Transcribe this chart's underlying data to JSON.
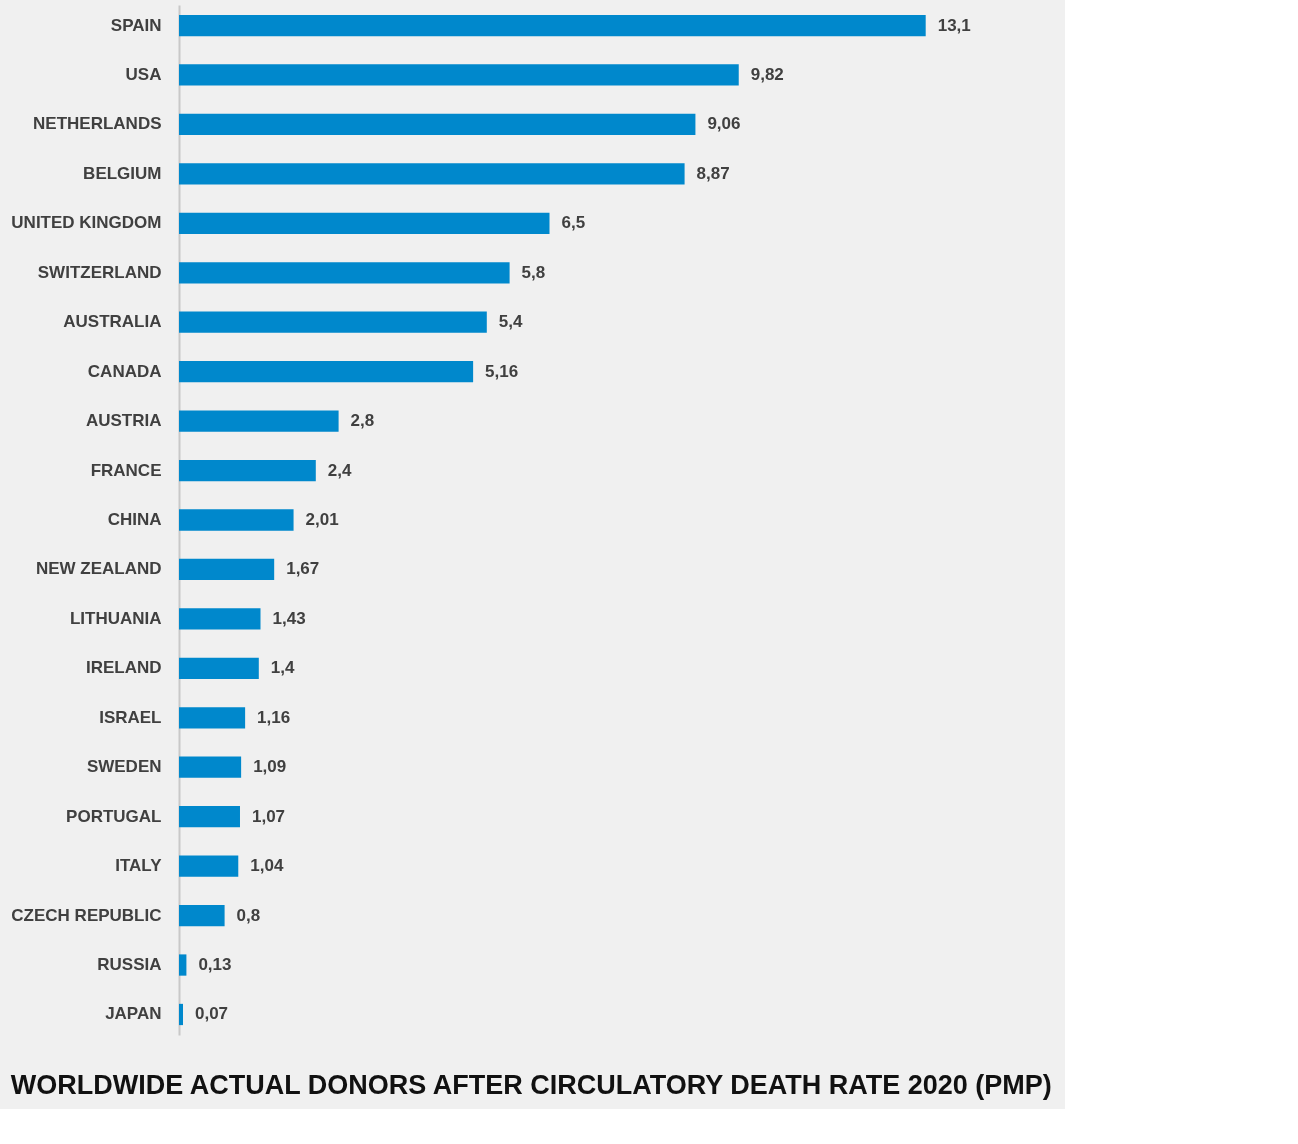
{
  "chart_data": {
    "type": "bar",
    "orientation": "horizontal",
    "title": "WORLDWIDE ACTUAL DONORS AFTER CIRCULATORY DEATH RATE 2020 (PMP)",
    "categories": [
      "SPAIN",
      "USA",
      "NETHERLANDS",
      "BELGIUM",
      "UNITED KINGDOM",
      "SWITZERLAND",
      "AUSTRALIA",
      "CANADA",
      "AUSTRIA",
      "FRANCE",
      "CHINA",
      "NEW ZEALAND",
      "LITHUANIA",
      "IRELAND",
      "ISRAEL",
      "SWEDEN",
      "PORTUGAL",
      "ITALY",
      "CZECH REPUBLIC",
      "RUSSIA",
      "JAPAN"
    ],
    "values": [
      13.1,
      9.82,
      9.06,
      8.87,
      6.5,
      5.8,
      5.4,
      5.16,
      2.8,
      2.4,
      2.01,
      1.67,
      1.43,
      1.4,
      1.16,
      1.09,
      1.07,
      1.04,
      0.8,
      0.13,
      0.07
    ],
    "value_labels": [
      "13,1",
      "9,82",
      "9,06",
      "8,87",
      "6,5",
      "5,8",
      "5,4",
      "5,16",
      "2,8",
      "2,4",
      "2,01",
      "1,67",
      "1,43",
      "1,4",
      "1,16",
      "1,09",
      "1,07",
      "1,04",
      "0,8",
      "0,13",
      "0,07"
    ],
    "color": "#0088cc",
    "tick_labels": "y"
  }
}
